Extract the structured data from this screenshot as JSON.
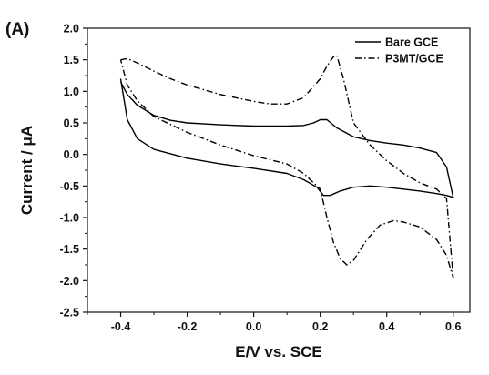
{
  "panel_label": "(A)",
  "chart_data": {
    "type": "line",
    "title": "",
    "xlabel": "E/V vs. SCE",
    "ylabel": "Current / μA",
    "xlim": [
      -0.5,
      0.65
    ],
    "ylim": [
      -2.5,
      2.0
    ],
    "xticks": [
      -0.4,
      -0.2,
      0.0,
      0.2,
      0.4,
      0.6
    ],
    "xtick_labels": [
      "-0.4",
      "-0.2",
      "0.0",
      "0.2",
      "0.4",
      "0.6"
    ],
    "yticks": [
      2.0,
      1.5,
      1.0,
      0.5,
      0.0,
      -0.5,
      -1.0,
      -1.5,
      -2.0,
      -2.5
    ],
    "ytick_labels": [
      "2.0",
      "1.5",
      "1.0",
      "0.5",
      "0.0",
      "-0.5",
      "-1.0",
      "-1.5",
      "-2.0",
      "-2.5"
    ],
    "grid": false,
    "legend_position": "top-right",
    "series": [
      {
        "name": "Bare GCE",
        "style": "solid",
        "color": "#000000",
        "x": [
          -0.4,
          -0.38,
          -0.35,
          -0.3,
          -0.25,
          -0.2,
          -0.1,
          0.0,
          0.1,
          0.15,
          0.18,
          0.2,
          0.22,
          0.25,
          0.3,
          0.35,
          0.4,
          0.45,
          0.5,
          0.55,
          0.58,
          0.6,
          0.58,
          0.55,
          0.5,
          0.45,
          0.4,
          0.35,
          0.3,
          0.26,
          0.23,
          0.21,
          0.19,
          0.15,
          0.1,
          0.0,
          -0.1,
          -0.2,
          -0.3,
          -0.35,
          -0.38,
          -0.4
        ],
        "y": [
          1.15,
          0.95,
          0.78,
          0.62,
          0.54,
          0.5,
          0.47,
          0.45,
          0.45,
          0.46,
          0.5,
          0.55,
          0.55,
          0.42,
          0.28,
          0.22,
          0.18,
          0.15,
          0.1,
          0.03,
          -0.2,
          -0.68,
          -0.65,
          -0.62,
          -0.58,
          -0.55,
          -0.52,
          -0.5,
          -0.52,
          -0.58,
          -0.65,
          -0.65,
          -0.52,
          -0.4,
          -0.3,
          -0.22,
          -0.15,
          -0.06,
          0.08,
          0.25,
          0.55,
          1.2
        ]
      },
      {
        "name": "P3MT/GCE",
        "style": "dash-dot",
        "color": "#000000",
        "x": [
          -0.4,
          -0.38,
          -0.35,
          -0.3,
          -0.25,
          -0.2,
          -0.1,
          0.0,
          0.05,
          0.1,
          0.15,
          0.2,
          0.22,
          0.24,
          0.25,
          0.27,
          0.3,
          0.35,
          0.4,
          0.45,
          0.5,
          0.55,
          0.58,
          0.6,
          0.58,
          0.55,
          0.5,
          0.45,
          0.42,
          0.38,
          0.34,
          0.3,
          0.28,
          0.26,
          0.24,
          0.22,
          0.2,
          0.15,
          0.1,
          0.0,
          -0.1,
          -0.2,
          -0.3,
          -0.35,
          -0.38,
          -0.4
        ],
        "y": [
          1.5,
          1.52,
          1.45,
          1.32,
          1.2,
          1.1,
          0.95,
          0.84,
          0.8,
          0.8,
          0.9,
          1.2,
          1.4,
          1.55,
          1.57,
          1.2,
          0.5,
          0.15,
          -0.1,
          -0.3,
          -0.45,
          -0.55,
          -0.7,
          -1.95,
          -1.6,
          -1.35,
          -1.15,
          -1.07,
          -1.05,
          -1.12,
          -1.35,
          -1.68,
          -1.75,
          -1.65,
          -1.4,
          -1.0,
          -0.55,
          -0.3,
          -0.15,
          -0.02,
          0.15,
          0.35,
          0.6,
          0.85,
          1.1,
          1.5
        ]
      }
    ]
  }
}
